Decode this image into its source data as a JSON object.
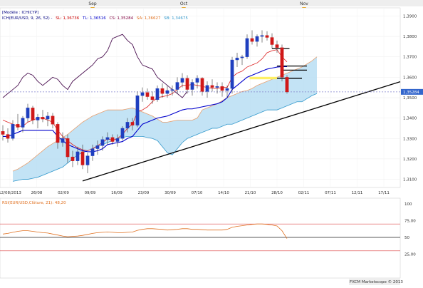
{
  "chart_data": [
    {
      "type": "candlestick",
      "legend_main": "[Modèle : ICHICYP]",
      "legend_ichimoku": {
        "label": "ICH(EUR/USD, 9, 26, 52) -",
        "items": [
          {
            "text": "SL: 1,36736",
            "color": "#cc0000"
          },
          {
            "text": "TL: 1,36516",
            "color": "#0000cc"
          },
          {
            "text": "CS: 1,35284",
            "color": "#800040"
          },
          {
            "text": "SA: 1,36627",
            "color": "#e07020"
          },
          {
            "text": "SB: 1,34675",
            "color": "#3399cc"
          }
        ]
      },
      "month_labels": [
        "Sep",
        "Oct",
        "Nov"
      ],
      "x_tick_labels": [
        "12/08/2013",
        "26/08",
        "02/09",
        "09/09",
        "16/09",
        "23/09",
        "30/09",
        "07/10",
        "14/10",
        "21/10",
        "28/10",
        "02/11",
        "07/11",
        "12/11",
        "17/11"
      ],
      "y_tick_labels": [
        "1,3900",
        "1,3800",
        "1,3700",
        "1,3600",
        "1,3500",
        "1,3400",
        "1,3300",
        "1,3200",
        "1,3100"
      ],
      "ylim": [
        1.306,
        1.394
      ],
      "last_price_label": "1,35284",
      "candles": [
        {
          "o": 1.3335,
          "h": 1.3365,
          "l": 1.329,
          "c": 1.332
        },
        {
          "o": 1.332,
          "h": 1.335,
          "l": 1.328,
          "c": 1.33
        },
        {
          "o": 1.33,
          "h": 1.339,
          "l": 1.329,
          "c": 1.337
        },
        {
          "o": 1.337,
          "h": 1.342,
          "l": 1.334,
          "c": 1.3355
        },
        {
          "o": 1.3355,
          "h": 1.341,
          "l": 1.333,
          "c": 1.34
        },
        {
          "o": 1.34,
          "h": 1.347,
          "l": 1.338,
          "c": 1.345
        },
        {
          "o": 1.345,
          "h": 1.346,
          "l": 1.337,
          "c": 1.339
        },
        {
          "o": 1.339,
          "h": 1.342,
          "l": 1.335,
          "c": 1.3405
        },
        {
          "o": 1.3405,
          "h": 1.344,
          "l": 1.338,
          "c": 1.3395
        },
        {
          "o": 1.3395,
          "h": 1.343,
          "l": 1.336,
          "c": 1.341
        },
        {
          "o": 1.341,
          "h": 1.3425,
          "l": 1.335,
          "c": 1.337
        },
        {
          "o": 1.337,
          "h": 1.338,
          "l": 1.325,
          "c": 1.328
        },
        {
          "o": 1.328,
          "h": 1.333,
          "l": 1.326,
          "c": 1.33
        },
        {
          "o": 1.33,
          "h": 1.332,
          "l": 1.318,
          "c": 1.321
        },
        {
          "o": 1.321,
          "h": 1.324,
          "l": 1.316,
          "c": 1.319
        },
        {
          "o": 1.319,
          "h": 1.326,
          "l": 1.317,
          "c": 1.3235
        },
        {
          "o": 1.3235,
          "h": 1.327,
          "l": 1.315,
          "c": 1.317
        },
        {
          "o": 1.317,
          "h": 1.323,
          "l": 1.313,
          "c": 1.3215
        },
        {
          "o": 1.3215,
          "h": 1.327,
          "l": 1.319,
          "c": 1.325
        },
        {
          "o": 1.325,
          "h": 1.329,
          "l": 1.322,
          "c": 1.3265
        },
        {
          "o": 1.3265,
          "h": 1.331,
          "l": 1.324,
          "c": 1.3295
        },
        {
          "o": 1.3295,
          "h": 1.333,
          "l": 1.327,
          "c": 1.3305
        },
        {
          "o": 1.3305,
          "h": 1.332,
          "l": 1.327,
          "c": 1.3285
        },
        {
          "o": 1.3285,
          "h": 1.332,
          "l": 1.326,
          "c": 1.33
        },
        {
          "o": 1.33,
          "h": 1.336,
          "l": 1.329,
          "c": 1.335
        },
        {
          "o": 1.335,
          "h": 1.34,
          "l": 1.333,
          "c": 1.338
        },
        {
          "o": 1.338,
          "h": 1.34,
          "l": 1.334,
          "c": 1.3365
        },
        {
          "o": 1.3365,
          "h": 1.353,
          "l": 1.3355,
          "c": 1.351
        },
        {
          "o": 1.351,
          "h": 1.355,
          "l": 1.348,
          "c": 1.3525
        },
        {
          "o": 1.3525,
          "h": 1.3545,
          "l": 1.349,
          "c": 1.3505
        },
        {
          "o": 1.3505,
          "h": 1.353,
          "l": 1.347,
          "c": 1.349
        },
        {
          "o": 1.349,
          "h": 1.356,
          "l": 1.348,
          "c": 1.3545
        },
        {
          "o": 1.3545,
          "h": 1.357,
          "l": 1.35,
          "c": 1.352
        },
        {
          "o": 1.352,
          "h": 1.356,
          "l": 1.35,
          "c": 1.3535
        },
        {
          "o": 1.3535,
          "h": 1.356,
          "l": 1.351,
          "c": 1.354
        },
        {
          "o": 1.354,
          "h": 1.36,
          "l": 1.352,
          "c": 1.3575
        },
        {
          "o": 1.3575,
          "h": 1.362,
          "l": 1.355,
          "c": 1.3595
        },
        {
          "o": 1.3595,
          "h": 1.361,
          "l": 1.352,
          "c": 1.354
        },
        {
          "o": 1.354,
          "h": 1.359,
          "l": 1.351,
          "c": 1.3575
        },
        {
          "o": 1.3575,
          "h": 1.361,
          "l": 1.3545,
          "c": 1.3595
        },
        {
          "o": 1.3595,
          "h": 1.36,
          "l": 1.351,
          "c": 1.353
        },
        {
          "o": 1.353,
          "h": 1.358,
          "l": 1.35,
          "c": 1.356
        },
        {
          "o": 1.356,
          "h": 1.359,
          "l": 1.353,
          "c": 1.355
        },
        {
          "o": 1.355,
          "h": 1.3575,
          "l": 1.352,
          "c": 1.3555
        },
        {
          "o": 1.3555,
          "h": 1.3575,
          "l": 1.3505,
          "c": 1.3535
        },
        {
          "o": 1.3535,
          "h": 1.356,
          "l": 1.35,
          "c": 1.3545
        },
        {
          "o": 1.3545,
          "h": 1.37,
          "l": 1.352,
          "c": 1.3685
        },
        {
          "o": 1.3685,
          "h": 1.372,
          "l": 1.365,
          "c": 1.3695
        },
        {
          "o": 1.3695,
          "h": 1.371,
          "l": 1.366,
          "c": 1.37
        },
        {
          "o": 1.37,
          "h": 1.381,
          "l": 1.369,
          "c": 1.379
        },
        {
          "o": 1.379,
          "h": 1.383,
          "l": 1.376,
          "c": 1.3775
        },
        {
          "o": 1.3775,
          "h": 1.381,
          "l": 1.375,
          "c": 1.38
        },
        {
          "o": 1.38,
          "h": 1.383,
          "l": 1.377,
          "c": 1.3805
        },
        {
          "o": 1.3805,
          "h": 1.3825,
          "l": 1.378,
          "c": 1.3795
        },
        {
          "o": 1.3795,
          "h": 1.3815,
          "l": 1.374,
          "c": 1.376
        },
        {
          "o": 1.376,
          "h": 1.378,
          "l": 1.372,
          "c": 1.3745
        },
        {
          "o": 1.3745,
          "h": 1.376,
          "l": 1.358,
          "c": 1.36
        },
        {
          "o": 1.36,
          "h": 1.361,
          "l": 1.352,
          "c": 1.3528
        }
      ],
      "tenkan": [
        1.339,
        1.338,
        1.337,
        1.336,
        1.336,
        1.338,
        1.339,
        1.34,
        1.34,
        1.339,
        1.338,
        1.334,
        1.331,
        1.329,
        1.327,
        1.3255,
        1.3245,
        1.324,
        1.325,
        1.3265,
        1.328,
        1.33,
        1.329,
        1.33,
        1.332,
        1.335,
        1.337,
        1.343,
        1.344,
        1.3455,
        1.348,
        1.35,
        1.3505,
        1.351,
        1.352,
        1.354,
        1.356,
        1.356,
        1.3565,
        1.356,
        1.3555,
        1.355,
        1.3545,
        1.3545,
        1.355,
        1.355,
        1.36,
        1.362,
        1.363,
        1.365,
        1.366,
        1.367,
        1.369,
        1.372,
        1.373,
        1.3735,
        1.37,
        1.3675
      ],
      "kijun": [
        1.331,
        1.331,
        1.332,
        1.333,
        1.334,
        1.334,
        1.334,
        1.334,
        1.334,
        1.334,
        1.334,
        1.331,
        1.329,
        1.327,
        1.326,
        1.325,
        1.324,
        1.3235,
        1.3235,
        1.324,
        1.325,
        1.327,
        1.3275,
        1.328,
        1.3285,
        1.33,
        1.331,
        1.334,
        1.337,
        1.338,
        1.339,
        1.34,
        1.3405,
        1.341,
        1.342,
        1.343,
        1.344,
        1.3445,
        1.3445,
        1.345,
        1.3455,
        1.346,
        1.3465,
        1.347,
        1.348,
        1.35,
        1.354,
        1.356,
        1.358,
        1.36,
        1.361,
        1.362,
        1.363,
        1.364,
        1.3645,
        1.365,
        1.3652,
        1.3652
      ],
      "chikou": [
        1.35,
        1.352,
        1.354,
        1.356,
        1.36,
        1.362,
        1.361,
        1.358,
        1.356,
        1.358,
        1.36,
        1.359,
        1.356,
        1.354,
        1.358,
        1.36,
        1.362,
        1.364,
        1.366,
        1.369,
        1.37,
        1.373,
        1.379,
        1.38,
        1.381,
        1.378,
        1.376,
        1.37,
        1.366,
        1.365,
        1.364,
        1.36,
        1.358,
        1.356,
        1.354,
        1.352,
        1.35,
        1.353
      ],
      "senkou_a": [
        1.314,
        1.315,
        1.3165,
        1.318,
        1.32,
        1.322,
        1.324,
        1.326,
        1.3275,
        1.329,
        1.3305,
        1.332,
        1.334,
        1.336,
        1.338,
        1.3395,
        1.341,
        1.342,
        1.343,
        1.344,
        1.344,
        1.344,
        1.344,
        1.3445,
        1.345,
        1.344,
        1.343,
        1.342,
        1.341,
        1.3395,
        1.338,
        1.338,
        1.3385,
        1.339,
        1.339,
        1.339,
        1.339,
        1.34,
        1.344,
        1.345,
        1.346,
        1.347,
        1.3485,
        1.35,
        1.351,
        1.352,
        1.353,
        1.3535,
        1.3545,
        1.356,
        1.357,
        1.358,
        1.359,
        1.36,
        1.361,
        1.362,
        1.363,
        1.364,
        1.365,
        1.3665,
        1.368,
        1.37
      ],
      "senkou_b": [
        1.309,
        1.3095,
        1.31,
        1.31,
        1.3105,
        1.311,
        1.312,
        1.313,
        1.314,
        1.315,
        1.316,
        1.318,
        1.32,
        1.322,
        1.323,
        1.324,
        1.325,
        1.326,
        1.327,
        1.328,
        1.329,
        1.33,
        1.3305,
        1.331,
        1.331,
        1.331,
        1.331,
        1.3305,
        1.33,
        1.329,
        1.326,
        1.323,
        1.322,
        1.325,
        1.328,
        1.33,
        1.331,
        1.332,
        1.333,
        1.334,
        1.335,
        1.335,
        1.336,
        1.337,
        1.337,
        1.338,
        1.339,
        1.34,
        1.341,
        1.342,
        1.343,
        1.344,
        1.344,
        1.344,
        1.345,
        1.346,
        1.347,
        1.348,
        1.348,
        1.3495,
        1.351,
        1.352
      ]
    },
    {
      "type": "line",
      "legend": "RSI(EUR/USD,Clôture, 21): 48,20",
      "y_tick_labels": [
        "100",
        "75,00",
        "50",
        "25,00"
      ],
      "ylim": [
        0,
        100
      ],
      "levels": [
        70,
        50,
        30
      ],
      "values": [
        55.0,
        56.0,
        57.5,
        59.0,
        60.0,
        60.0,
        59.0,
        58.0,
        57.0,
        56.5,
        55.0,
        53.5,
        52.0,
        51.0,
        51.5,
        52.0,
        53.0,
        54.5,
        56.0,
        57.0,
        57.5,
        58.0,
        57.5,
        57.0,
        57.0,
        57.5,
        58.0,
        60.5,
        62.0,
        63.0,
        63.0,
        62.5,
        62.0,
        61.0,
        61.5,
        62.0,
        63.0,
        63.0,
        62.0,
        62.0,
        61.5,
        61.0,
        61.0,
        61.0,
        61.0,
        62.0,
        65.0,
        66.5,
        67.5,
        68.5,
        69.5,
        70.0,
        70.0,
        69.5,
        68.5,
        67.0,
        60.0,
        48.2
      ]
    }
  ],
  "branding": "FXCM Marketscope © 2013"
}
